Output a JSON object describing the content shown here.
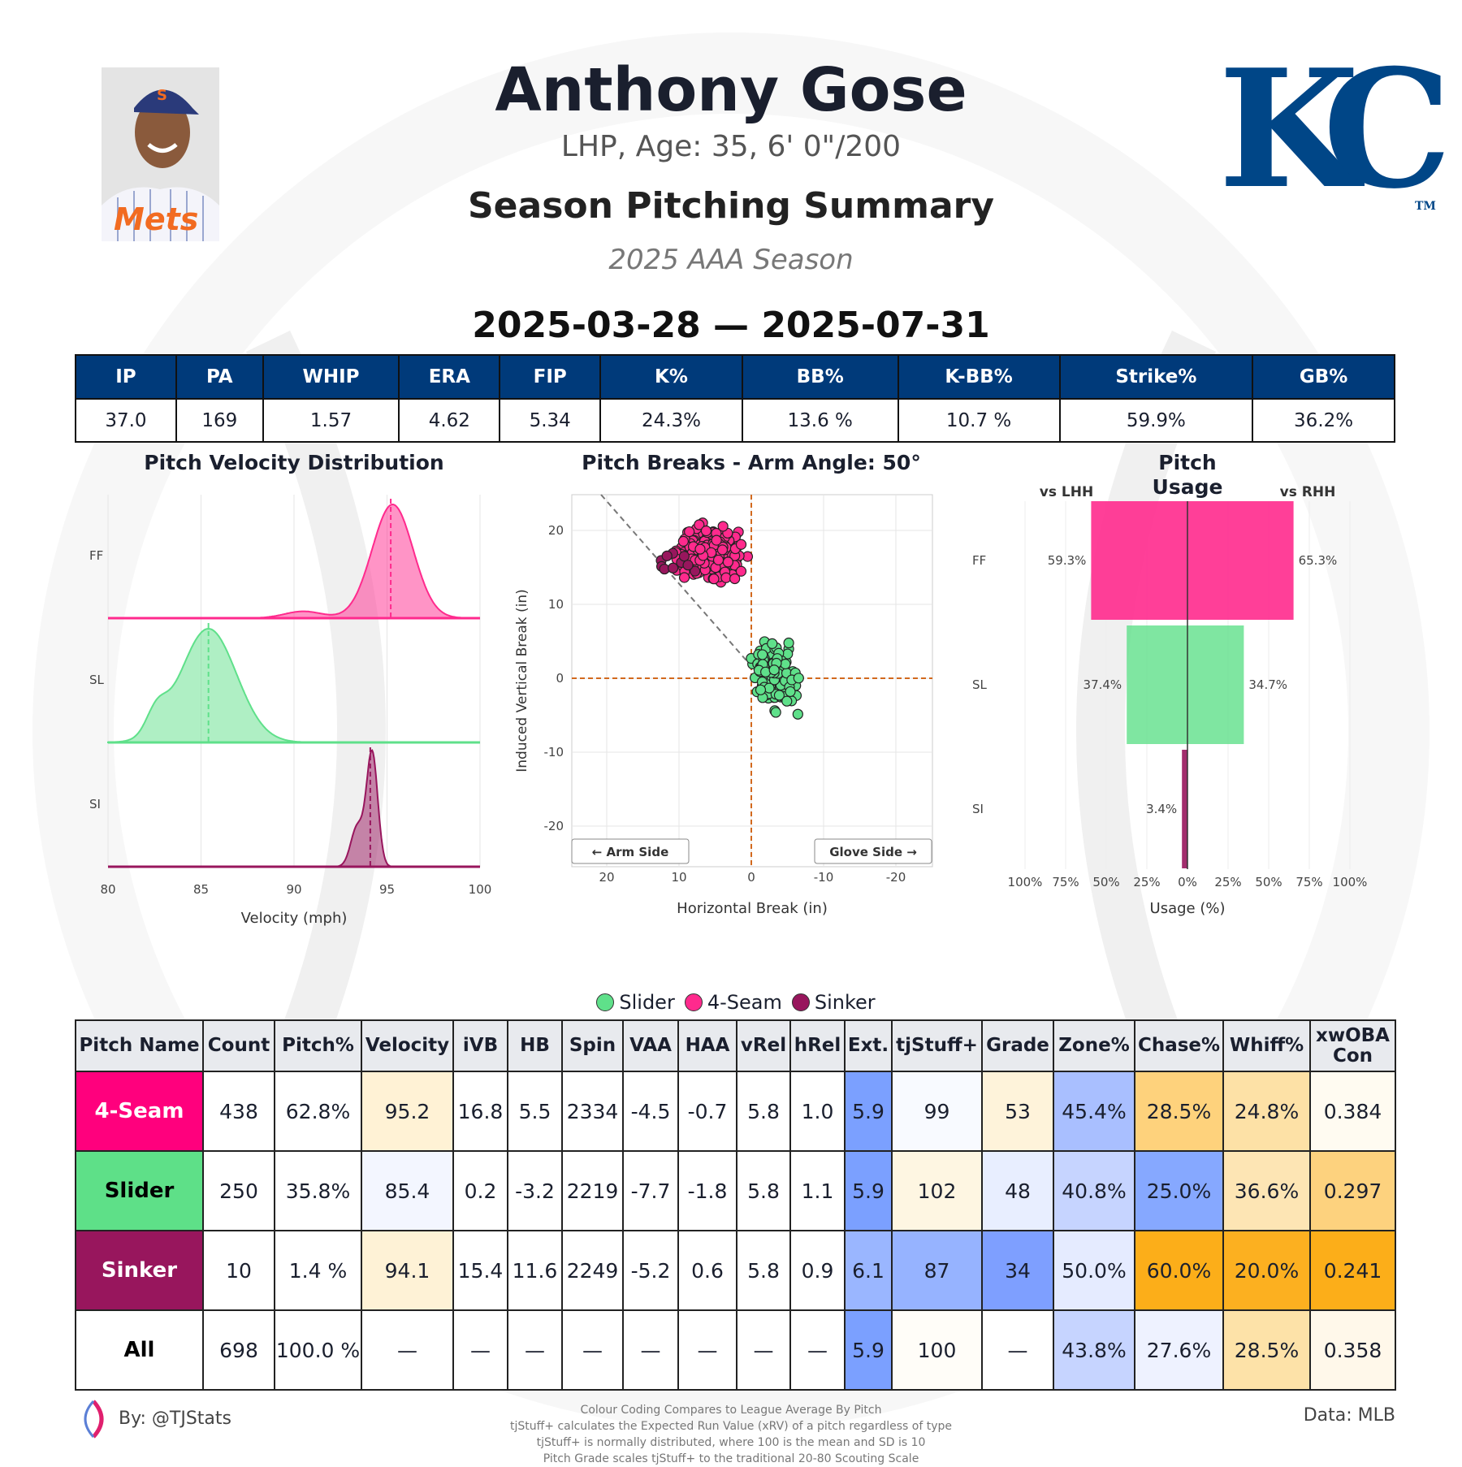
{
  "header": {
    "name": "Anthony Gose",
    "bio": "LHP, Age: 35, 6' 0\"/200",
    "report_title": "Season Pitching Summary",
    "season": "2025 AAA Season",
    "date_range": "2025-03-28 — 2025-07-31",
    "team_logo_text": "KC",
    "team_logo_tm": "TM",
    "photo_cap_letter": "S",
    "photo_jersey_text": "Mets"
  },
  "stats": {
    "headers": [
      "IP",
      "PA",
      "WHIP",
      "ERA",
      "FIP",
      "K%",
      "BB%",
      "K-BB%",
      "Strike%",
      "GB%"
    ],
    "values": [
      "37.0",
      "169",
      "1.57",
      "4.62",
      "5.34",
      "24.3%",
      "13.6 %",
      "10.7 %",
      "59.9%",
      "36.2%"
    ]
  },
  "colors": {
    "FF": "#ff2a8d",
    "SL": "#5fe08a",
    "SI": "#98165d",
    "navy": "#003a7a"
  },
  "chart_data": [
    {
      "type": "area",
      "title": "Pitch Velocity Distribution",
      "xlabel": "Velocity (mph)",
      "xlim": [
        80,
        100
      ],
      "xticks": [
        "80",
        "85",
        "90",
        "95",
        "100"
      ],
      "rows": [
        "FF",
        "SL",
        "SI"
      ],
      "means": {
        "FF": 95.2,
        "SL": 85.4,
        "SI": 94.1
      },
      "grid": true
    },
    {
      "type": "scatter",
      "title": "Pitch Breaks - Arm Angle: 50°",
      "xlabel": "Horizontal Break (in)",
      "ylabel": "Induced Vertical Break (in)",
      "xlim": [
        25,
        -25
      ],
      "ylim": [
        -25,
        25
      ],
      "xticks": [
        "20",
        "10",
        "0",
        "-10",
        "-20"
      ],
      "yticks": [
        "20",
        "10",
        "0",
        "-10",
        "-20"
      ],
      "arm_label": "← Arm Side",
      "glove_label": "Glove Side →",
      "series": [
        {
          "name": "4-Seam",
          "pitch": "FF",
          "hb": 5.5,
          "ivb": 16.8,
          "count": 438
        },
        {
          "name": "Slider",
          "pitch": "SL",
          "hb": -3.2,
          "ivb": 0.2,
          "count": 250
        },
        {
          "name": "Sinker",
          "pitch": "SI",
          "hb": 11.6,
          "ivb": 15.4,
          "count": 10
        }
      ],
      "grid": true
    },
    {
      "type": "bar",
      "title": "Pitch Usage",
      "left_label": "vs LHH",
      "right_label": "vs RHH",
      "xlabel": "Usage (%)",
      "xticks": [
        "100%",
        "75%",
        "50%",
        "25%",
        "0%",
        "25%",
        "50%",
        "75%",
        "100%"
      ],
      "categories": [
        "FF",
        "SL",
        "SI"
      ],
      "series": [
        {
          "name": "vs LHH",
          "values": [
            59.3,
            37.4,
            3.4
          ]
        },
        {
          "name": "vs RHH",
          "values": [
            65.3,
            34.7,
            0
          ]
        }
      ],
      "labels_lhh": [
        "59.3%",
        "37.4%",
        "3.4%"
      ],
      "labels_rhh": [
        "65.3%",
        "34.7%",
        ""
      ]
    }
  ],
  "legend": [
    {
      "label": "Slider",
      "color": "#5fe08a"
    },
    {
      "label": "4-Seam",
      "color": "#ff2a8d"
    },
    {
      "label": "Sinker",
      "color": "#98165d"
    }
  ],
  "pitch_table": {
    "headers": [
      "Pitch Name",
      "Count",
      "Pitch%",
      "Velocity",
      "iVB",
      "HB",
      "Spin",
      "VAA",
      "HAA",
      "vRel",
      "hRel",
      "Ext.",
      "tjStuff+",
      "Grade",
      "Zone%",
      "Chase%",
      "Whiff%",
      "xwOBA Con"
    ],
    "rows": [
      {
        "name": "4-Seam",
        "name_bg": "#ff007d",
        "name_color": "#ffffff",
        "cells": [
          "438",
          "62.8%",
          "95.2",
          "16.8",
          "5.5",
          "2334",
          "-4.5",
          "-0.7",
          "5.8",
          "1.0",
          "5.9",
          "99",
          "53",
          "45.4%",
          "28.5%",
          "24.8%",
          "0.384"
        ],
        "bgs": [
          "",
          "",
          "#fff2d5",
          "",
          "",
          "",
          "",
          "",
          "",
          "",
          "#7ba0ff",
          "#f8faff",
          "#fef3da",
          "#a9bfff",
          "#fed27c",
          "#fde1a6",
          "#fffbf1"
        ]
      },
      {
        "name": "Slider",
        "name_bg": "#5ee088",
        "name_color": "#000000",
        "cells": [
          "250",
          "35.8%",
          "85.4",
          "0.2",
          "-3.2",
          "2219",
          "-7.7",
          "-1.8",
          "5.8",
          "1.1",
          "5.9",
          "102",
          "48",
          "40.8%",
          "25.0%",
          "36.6%",
          "0.297"
        ],
        "bgs": [
          "",
          "",
          "#f3f6ff",
          "",
          "",
          "",
          "",
          "",
          "",
          "",
          "#7ba0ff",
          "#fef6e2",
          "#e8eeff",
          "#c6d4ff",
          "#86a8ff",
          "#fde5b4",
          "#fdd27e"
        ]
      },
      {
        "name": "Sinker",
        "name_bg": "#98165d",
        "name_color": "#ffffff",
        "cells": [
          "10",
          "1.4 %",
          "94.1",
          "15.4",
          "11.6",
          "2249",
          "-5.2",
          "0.6",
          "5.8",
          "0.9",
          "6.1",
          "87",
          "34",
          "50.0%",
          "60.0%",
          "20.0%",
          "0.241"
        ],
        "bgs": [
          "",
          "",
          "#fef2d6",
          "",
          "",
          "",
          "",
          "",
          "",
          "",
          "#9ab6ff",
          "#96b3ff",
          "#7e9fff",
          "#e5ebff",
          "#fcae19",
          "#fcb020",
          "#fcae19"
        ]
      },
      {
        "name": "All",
        "name_bg": "#ffffff",
        "name_color": "#000000",
        "cells": [
          "698",
          "100.0 %",
          "—",
          "—",
          "—",
          "—",
          "—",
          "—",
          "—",
          "—",
          "5.9",
          "100",
          "—",
          "43.8%",
          "27.6%",
          "28.5%",
          "0.358"
        ],
        "bgs": [
          "",
          "",
          "",
          "",
          "",
          "",
          "",
          "",
          "",
          "",
          "#7ba0ff",
          "#fffdf8",
          "",
          "#c6d4ff",
          "#eef2ff",
          "#fde2a8",
          "#fff8ea"
        ]
      }
    ]
  },
  "footer": {
    "byline": "By: @TJStats",
    "source": "Data: MLB",
    "notes": [
      "Colour Coding Compares to League Average By Pitch",
      "tjStuff+ calculates the Expected Run Value (xRV) of a pitch regardless of type",
      "tjStuff+ is normally distributed, where 100 is the mean and SD is 10",
      "Pitch Grade scales tjStuff+ to the traditional 20-80 Scouting Scale"
    ]
  }
}
